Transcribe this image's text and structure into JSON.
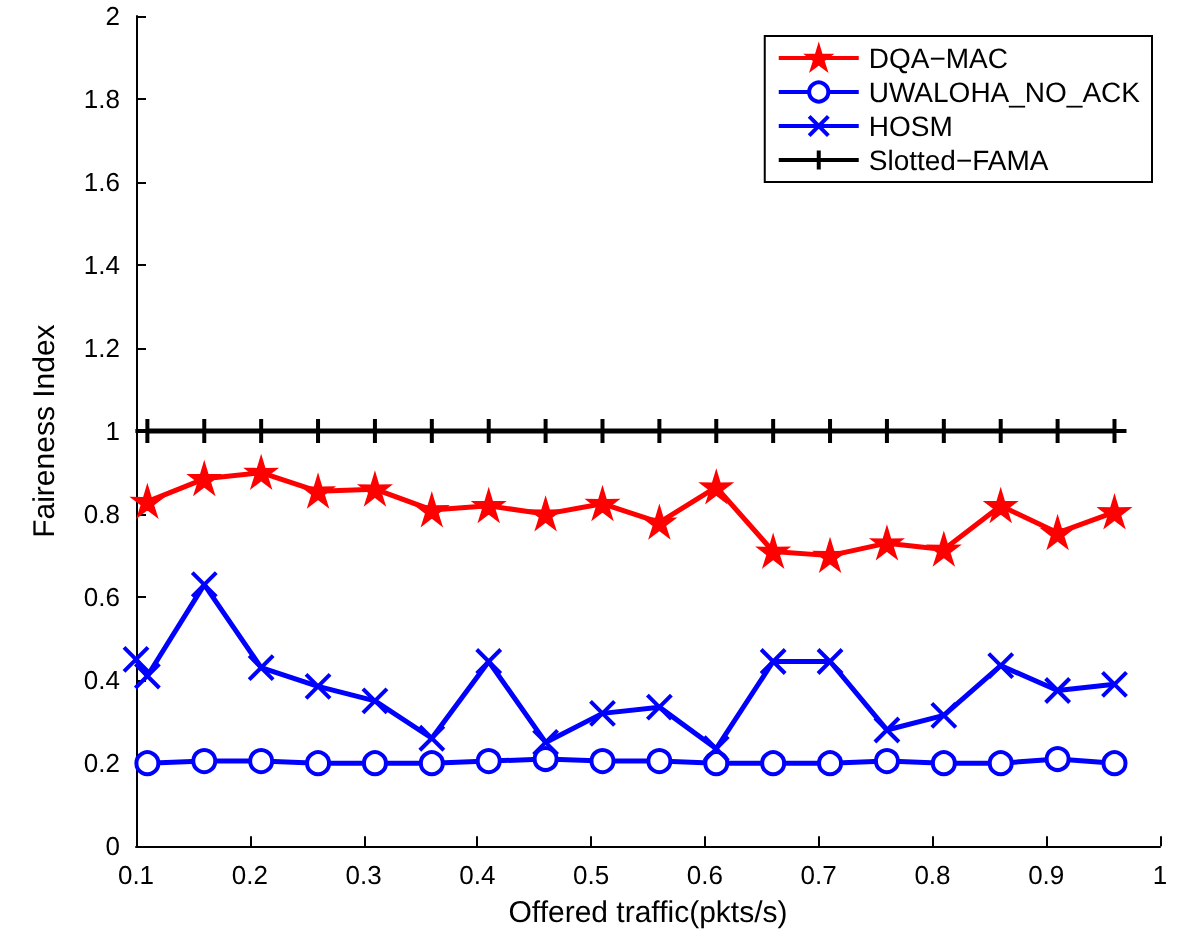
{
  "chart_data": {
    "type": "line",
    "xlabel": "Offered traffic(pkts/s)",
    "ylabel": "Faireness Index",
    "x": [
      0.11,
      0.16,
      0.21,
      0.26,
      0.31,
      0.36,
      0.41,
      0.46,
      0.51,
      0.56,
      0.61,
      0.66,
      0.71,
      0.76,
      0.81,
      0.86,
      0.91,
      0.96
    ],
    "series": [
      {
        "name": "DQA−MAC",
        "color": "#ff0000",
        "marker": "star",
        "values": [
          0.83,
          0.885,
          0.9,
          0.855,
          0.86,
          0.81,
          0.82,
          0.8,
          0.825,
          0.78,
          0.865,
          0.71,
          0.7,
          0.73,
          0.715,
          0.82,
          0.755,
          0.805
        ]
      },
      {
        "name": "UWALOHA_NO_ACK",
        "color": "#0000ff",
        "marker": "circle",
        "values": [
          0.2,
          0.205,
          0.205,
          0.2,
          0.2,
          0.2,
          0.205,
          0.21,
          0.205,
          0.205,
          0.2,
          0.2,
          0.2,
          0.205,
          0.2,
          0.2,
          0.21,
          0.2
        ]
      },
      {
        "name": "HOSM",
        "color": "#0000ff",
        "marker": "cross",
        "x": [
          0.1,
          0.11,
          0.16,
          0.21,
          0.26,
          0.31,
          0.36,
          0.41,
          0.46,
          0.51,
          0.56,
          0.61,
          0.66,
          0.71,
          0.76,
          0.81,
          0.86,
          0.91,
          0.96
        ],
        "values": [
          0.45,
          0.41,
          0.63,
          0.43,
          0.385,
          0.35,
          0.26,
          0.445,
          0.25,
          0.32,
          0.335,
          0.235,
          0.445,
          0.445,
          0.28,
          0.315,
          0.435,
          0.375,
          0.39
        ]
      },
      {
        "name": "Slotted−FAMA",
        "color": "#000000",
        "marker": "cross",
        "values": [
          1,
          1,
          1,
          1,
          1,
          1,
          1,
          1,
          1,
          1,
          1,
          1,
          1,
          1,
          1,
          1,
          1,
          1
        ]
      }
    ],
    "xlim": [
      0.1,
      1
    ],
    "xticks": [
      0.1,
      0.2,
      0.3,
      0.4,
      0.5,
      0.6,
      0.7,
      0.8,
      0.9,
      1
    ],
    "ylim": [
      0,
      2
    ],
    "yticks": [
      0,
      0.2,
      0.4,
      0.6,
      0.8,
      1,
      1.2,
      1.4,
      1.6,
      1.8,
      2
    ],
    "legend": "top right",
    "grid": false,
    "line_style": "solid"
  }
}
